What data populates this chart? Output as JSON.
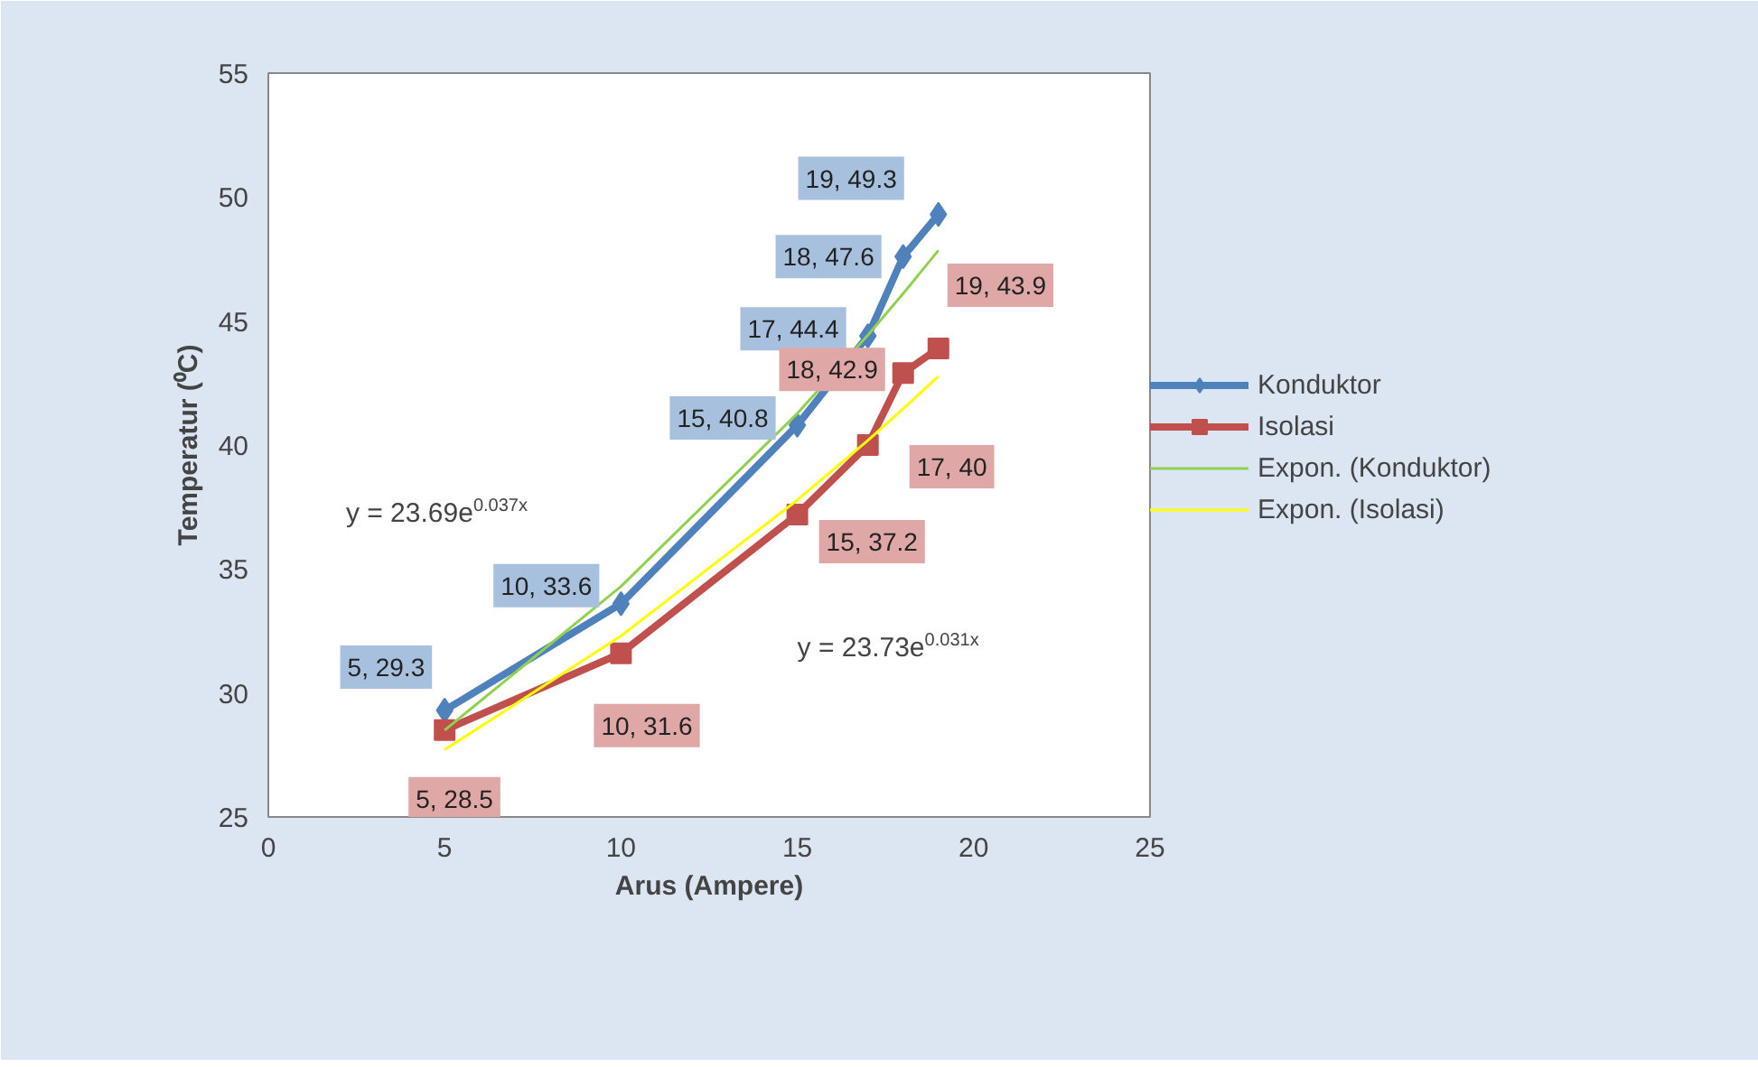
{
  "chart_data": {
    "type": "line",
    "xlabel": "Arus (Ampere)",
    "ylabel": "Temperatur (⁰C)",
    "xlim": [
      0,
      25
    ],
    "xticks": [
      0,
      5,
      10,
      15,
      20,
      25
    ],
    "ylim": [
      25,
      55
    ],
    "yticks": [
      25,
      30,
      35,
      40,
      45,
      50,
      55
    ],
    "grid": false,
    "legend": "right",
    "line_style": "solid",
    "series": [
      {
        "name": "Konduktor",
        "color": "#4f81bd",
        "marker": "diamond",
        "x": [
          5,
          10,
          15,
          17,
          18,
          19
        ],
        "values": [
          29.3,
          33.6,
          40.8,
          44.4,
          47.6,
          49.3
        ],
        "value_labels": [
          "5, 29.3",
          "10, 33.6",
          "15, 40.8",
          "17, 44.4",
          "18, 47.6",
          "19, 49.3"
        ]
      },
      {
        "name": "Isolasi",
        "color": "#c0504d",
        "marker": "square",
        "x": [
          5,
          10,
          15,
          17,
          18,
          19
        ],
        "values": [
          28.5,
          31.6,
          37.2,
          40,
          42.9,
          43.9
        ],
        "value_labels": [
          "5, 28.5",
          "10, 31.6",
          "15, 37.2",
          "17, 40",
          "18, 42.9",
          "19, 43.9"
        ]
      },
      {
        "name": "Expon. (Konduktor)",
        "color": "#92d050",
        "marker": "none",
        "x": [
          5,
          10,
          15,
          17,
          18,
          19
        ],
        "values": [
          28.5,
          34.3,
          41.27,
          44.43,
          46.11,
          47.85
        ]
      },
      {
        "name": "Expon. (Isolasi)",
        "color": "#ffff00",
        "marker": "none",
        "x": [
          5,
          10,
          15,
          17,
          18,
          19
        ],
        "values": [
          27.71,
          32.3,
          37.78,
          40.19,
          41.46,
          42.77
        ]
      }
    ],
    "annotations": [
      "y = 23.69e$^{0.037x}$",
      "y = 23.73e$^{0.031x}$"
    ]
  }
}
